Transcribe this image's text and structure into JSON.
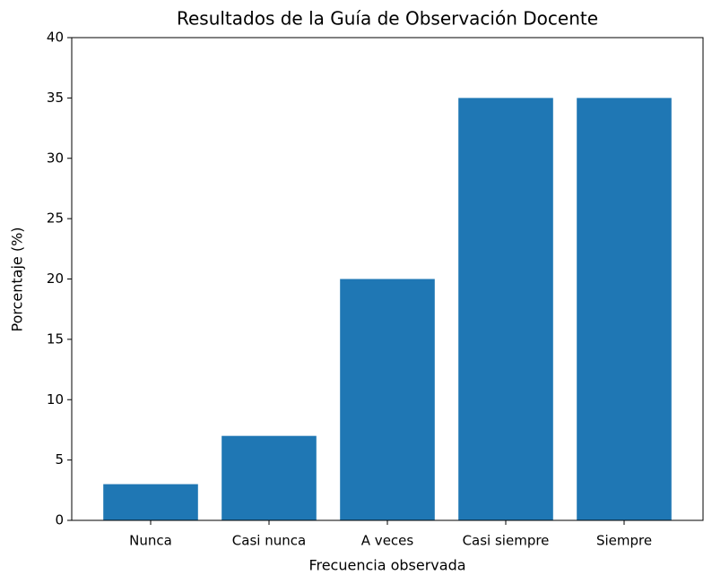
{
  "chart_data": {
    "type": "bar",
    "title": "Resultados de la Guía de Observación Docente",
    "x_label": "Frecuencia observada",
    "y_label": "Porcentaje (%)",
    "categories": [
      "Nunca",
      "Casi nunca",
      "A veces",
      "Casi siempre",
      "Siempre"
    ],
    "values": [
      3,
      7,
      20,
      35,
      35
    ],
    "color": "#1f77b4",
    "ylim": [
      0,
      40
    ],
    "yticks": [
      0,
      5,
      10,
      15,
      20,
      25,
      30,
      35,
      40
    ]
  }
}
